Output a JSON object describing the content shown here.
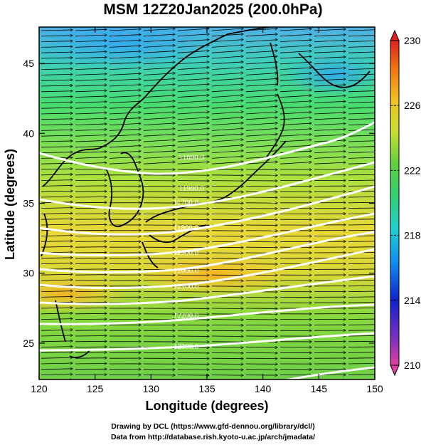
{
  "title": "MSM 12Z20Jan2025 (200.0hPa)",
  "map": {
    "type": "map",
    "x_axis": {
      "label": "Longitude (degrees)",
      "range": [
        120,
        150
      ],
      "ticks": [
        "120",
        "125",
        "130",
        "135",
        "140",
        "145",
        "150"
      ]
    },
    "y_axis": {
      "label": "Latitude  (degrees)",
      "range": [
        22.4,
        47.6
      ],
      "ticks": [
        "25",
        "30",
        "35",
        "40",
        "45"
      ]
    },
    "shaded_field_range": [
      210,
      230
    ],
    "colorbar": {
      "ticks": [
        "210",
        "214",
        "218",
        "222",
        "226",
        "230"
      ]
    },
    "contour_labels": [
      {
        "text": "11800.0",
        "lon": 132.5,
        "lat": 38.1
      },
      {
        "text": "11900.0",
        "lon": 132.5,
        "lat": 35.9
      },
      {
        "text": "11700.0",
        "lon": 132.0,
        "lat": 34.9
      },
      {
        "text": "11800.0",
        "lon": 132.0,
        "lat": 33.1
      },
      {
        "text": "11900.0",
        "lon": 132.0,
        "lat": 31.3
      },
      {
        "text": "12000.0",
        "lon": 132.0,
        "lat": 30.0
      },
      {
        "text": "12100.0",
        "lon": 132.0,
        "lat": 28.9
      },
      {
        "text": "12200.0",
        "lon": 132.0,
        "lat": 26.8
      },
      {
        "text": "12300.0",
        "lon": 132.0,
        "lat": 24.6
      }
    ]
  },
  "footer": {
    "line1": "Drawing by DCL (https://www.gfd-dennou.org/library/dcl/)",
    "line2": "Data from http://database.rish.kyoto-u.ac.jp/arch/jmadata/"
  },
  "colors": {
    "cb_min": "#e040a0",
    "cb_max": "#e02020",
    "contour": "#ffffff",
    "vector": "#000000"
  }
}
